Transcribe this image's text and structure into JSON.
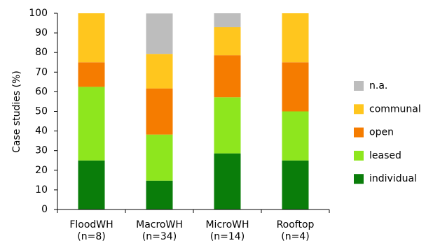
{
  "chart_data": {
    "type": "stacked_bar",
    "y_label": "Case studies (%)",
    "categories": [
      "FloodWH",
      "MacroWH",
      "MicroWH",
      "Rooftop"
    ],
    "category_notes": [
      "(n=8)",
      "(n=34)",
      "(n=14)",
      "(n=4)"
    ],
    "series": [
      {
        "name": "individual",
        "color": "#0a7d0a",
        "values": [
          25,
          14.7,
          28.6,
          25
        ]
      },
      {
        "name": "leased",
        "color": "#8ee61e",
        "values": [
          37.5,
          23.5,
          28.6,
          25
        ]
      },
      {
        "name": "open",
        "color": "#f57c00",
        "values": [
          12.5,
          23.5,
          21.4,
          25
        ]
      },
      {
        "name": "communal",
        "color": "#ffc61e",
        "values": [
          25,
          17.6,
          14.3,
          25
        ]
      },
      {
        "name": "n.a.",
        "color": "#bdbdbd",
        "values": [
          0,
          20.6,
          7.1,
          0
        ]
      }
    ],
    "ylim": [
      0,
      100
    ],
    "yticks": [
      0,
      10,
      20,
      30,
      40,
      50,
      60,
      70,
      80,
      90,
      100
    ]
  }
}
